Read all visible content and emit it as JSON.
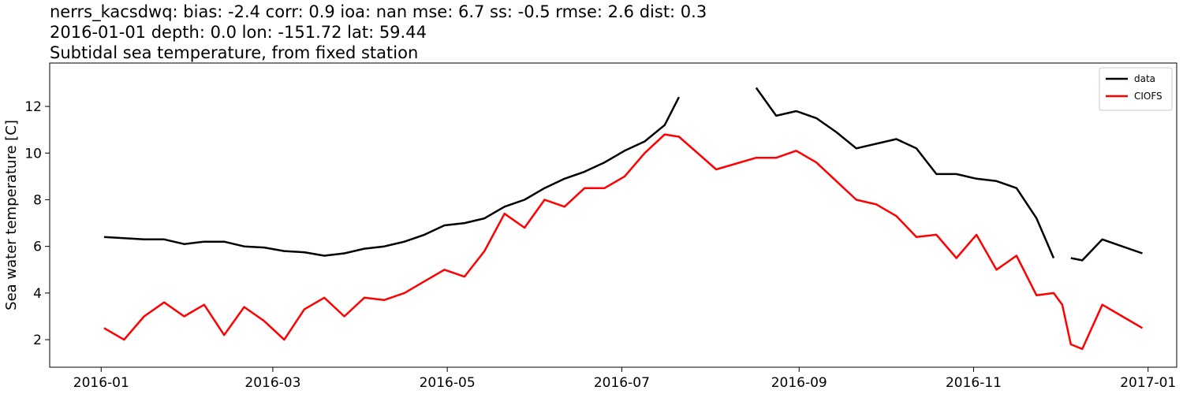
{
  "chart_data": {
    "type": "line",
    "title": "nerrs_kacsdwq: bias: -2.4  corr: 0.9  ioa: nan  mse: 6.7  ss: -0.5  rmse: 2.6  dist: 0.3",
    "subtitle": "2016-01-01 depth: 0.0 lon: -151.72 lat: 59.44",
    "subtitle2": "Subtidal sea temperature, from fixed station",
    "y_label": "Sea water temperature [C]",
    "x": [
      1,
      8,
      15,
      22,
      29,
      36,
      43,
      50,
      57,
      64,
      71,
      78,
      85,
      92,
      99,
      106,
      113,
      120,
      127,
      134,
      141,
      148,
      155,
      162,
      169,
      176,
      183,
      190,
      197,
      202,
      215,
      229,
      236,
      243,
      250,
      257,
      264,
      271,
      278,
      285,
      292,
      299,
      306,
      313,
      320,
      327,
      333,
      336,
      339,
      343,
      350,
      357,
      364
    ],
    "series": [
      {
        "name": "data",
        "color": "#000000",
        "values": [
          6.4,
          6.35,
          6.3,
          6.3,
          6.1,
          6.2,
          6.2,
          6.0,
          5.95,
          5.8,
          5.75,
          5.6,
          5.7,
          5.9,
          6.0,
          6.2,
          6.5,
          6.9,
          7.0,
          7.2,
          7.7,
          8.0,
          8.5,
          8.9,
          9.2,
          9.6,
          10.1,
          10.5,
          11.2,
          12.4,
          null,
          12.8,
          11.6,
          11.8,
          11.5,
          10.9,
          10.2,
          10.4,
          10.6,
          10.2,
          9.1,
          9.1,
          8.9,
          8.8,
          8.5,
          7.2,
          5.5,
          null,
          5.5,
          5.4,
          6.3,
          6.0,
          5.7
        ]
      },
      {
        "name": "CIOFS",
        "color": "#ff0000",
        "values": [
          2.5,
          2.0,
          3.0,
          3.6,
          3.0,
          3.5,
          2.2,
          3.4,
          2.8,
          2.0,
          3.3,
          3.8,
          3.0,
          3.8,
          3.7,
          4.0,
          4.5,
          5.0,
          4.7,
          5.8,
          7.4,
          6.8,
          8.0,
          7.7,
          8.5,
          8.5,
          9.0,
          10.0,
          10.8,
          10.7,
          9.3,
          9.8,
          9.8,
          10.1,
          9.6,
          8.8,
          8.0,
          7.8,
          7.3,
          6.4,
          6.5,
          5.5,
          6.5,
          5.0,
          5.6,
          3.9,
          4.0,
          3.5,
          1.8,
          1.6,
          3.5,
          3.0,
          2.5
        ]
      }
    ],
    "xlim": [
      -18,
      376
    ],
    "xticks": [
      {
        "value": 0,
        "label": "2016-01"
      },
      {
        "value": 60,
        "label": "2016-03"
      },
      {
        "value": 121,
        "label": "2016-05"
      },
      {
        "value": 182,
        "label": "2016-07"
      },
      {
        "value": 244,
        "label": "2016-09"
      },
      {
        "value": 305,
        "label": "2016-11"
      },
      {
        "value": 366,
        "label": "2017-01"
      }
    ],
    "ylim": [
      0.82,
      13.86
    ],
    "yticks": [
      2,
      4,
      6,
      8,
      10,
      12
    ],
    "legend": "upper right"
  }
}
